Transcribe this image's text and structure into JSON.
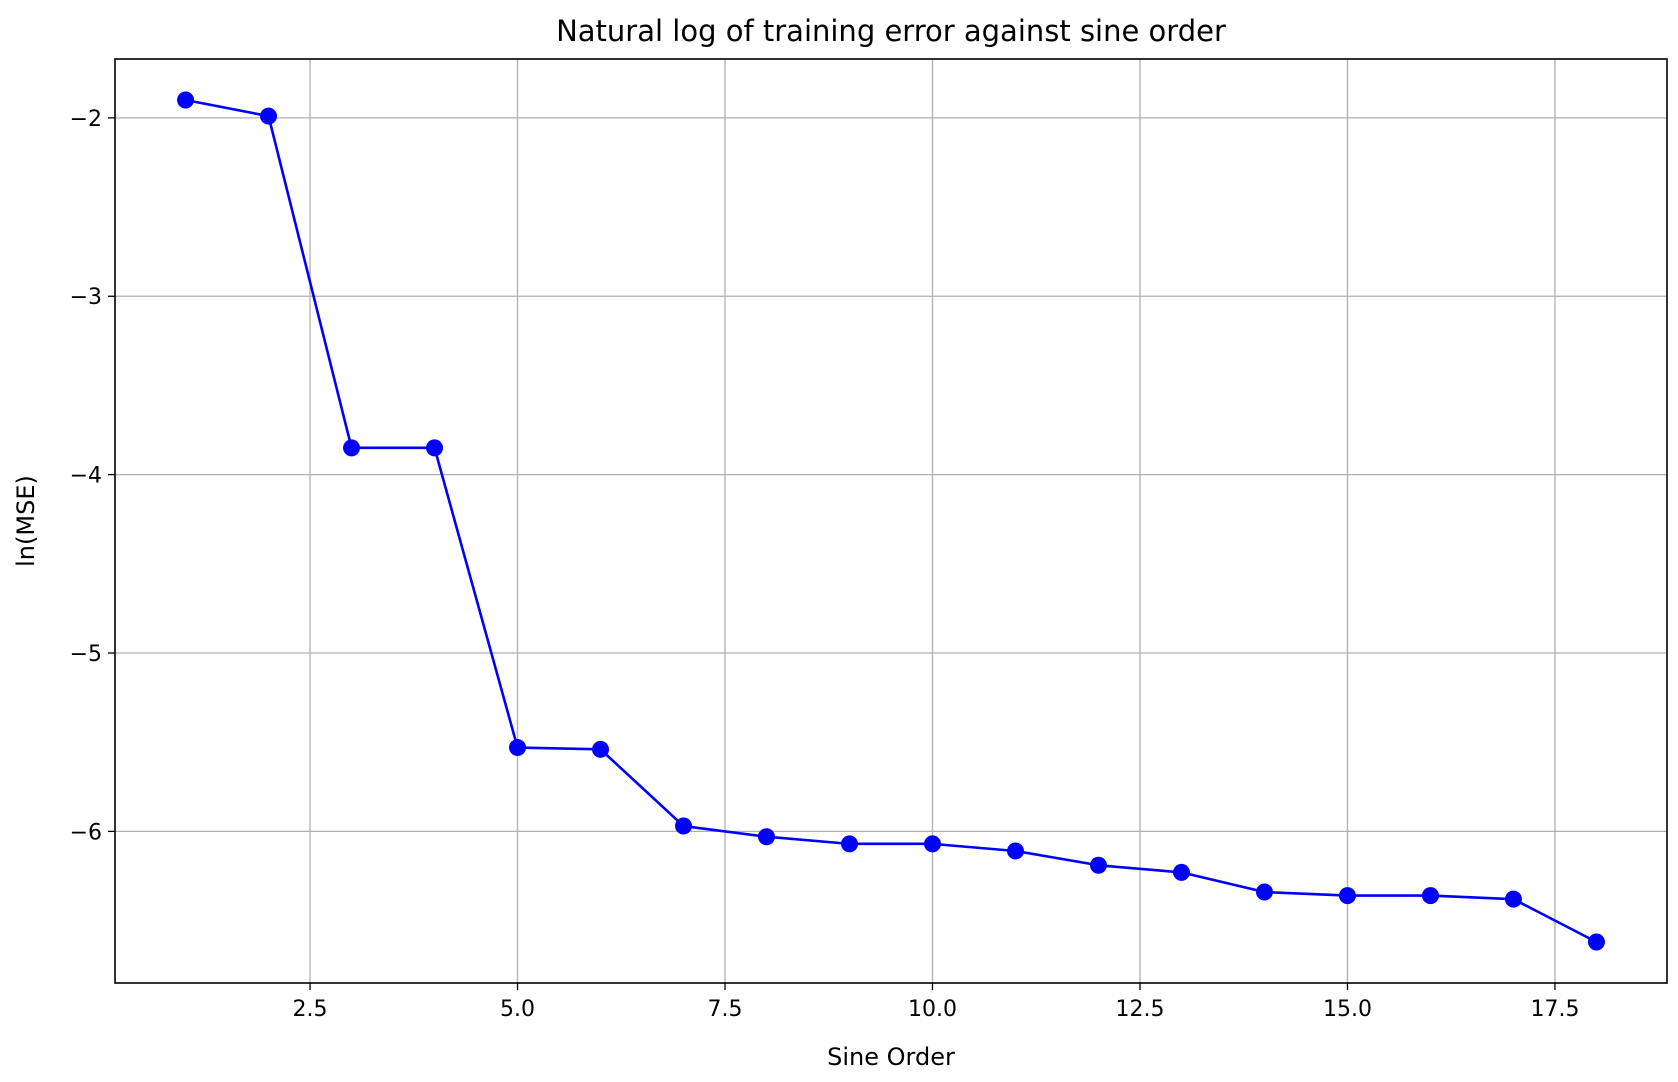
{
  "chart_data": {
    "type": "line",
    "title": "Natural log of training error against sine order",
    "xlabel": "Sine Order",
    "ylabel": "ln(MSE)",
    "xlim": [
      0.15,
      18.85
    ],
    "ylim": [
      -6.85,
      -1.67
    ],
    "xticks": [
      2.5,
      5.0,
      7.5,
      10.0,
      12.5,
      15.0,
      17.5
    ],
    "xtick_labels": [
      "2.5",
      "5.0",
      "7.5",
      "10.0",
      "12.5",
      "15.0",
      "17.5"
    ],
    "yticks": [
      -2,
      -3,
      -4,
      -5,
      -6
    ],
    "ytick_labels": [
      "−2",
      "−3",
      "−4",
      "−5",
      "−6"
    ],
    "grid": true,
    "marker": "circle",
    "series": [
      {
        "color": "#0000ff",
        "x": [
          1,
          2,
          3,
          4,
          5,
          6,
          7,
          8,
          9,
          10,
          11,
          12,
          13,
          14,
          15,
          16,
          17,
          18
        ],
        "y": [
          -1.9,
          -1.99,
          -3.85,
          -3.85,
          -5.53,
          -5.54,
          -5.97,
          -6.03,
          -6.07,
          -6.07,
          -6.11,
          -6.19,
          -6.23,
          -6.34,
          -6.36,
          -6.36,
          -6.38,
          -6.62
        ]
      }
    ]
  }
}
